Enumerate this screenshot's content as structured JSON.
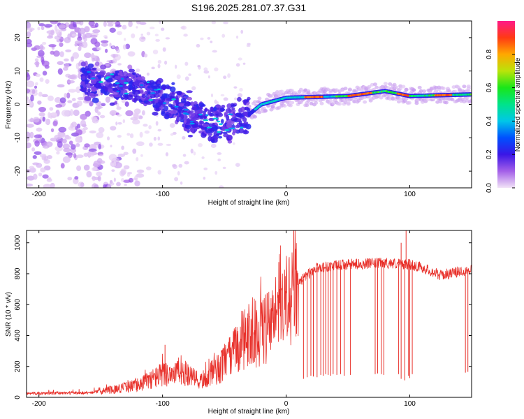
{
  "title": "S196.2025.281.07.37.G31",
  "chart_data": [
    {
      "type": "heatmap",
      "xlabel": "Height of straight line (km)",
      "ylabel": "Frequency (Hz)",
      "xlim": [
        -210,
        150
      ],
      "ylim": [
        -25,
        25
      ],
      "xticks": [
        -200,
        -100,
        0,
        100
      ],
      "yticks": [
        -20,
        -10,
        0,
        10,
        20
      ],
      "colorbar": {
        "label": "Normalized spectral amplitude",
        "range": [
          0,
          1
        ],
        "ticks": [
          0.0,
          0.2,
          0.4,
          0.6,
          0.8
        ],
        "tick_labels": [
          "0.0",
          "0.2",
          "0.4",
          "0.6",
          "0.8"
        ]
      },
      "ridge": {
        "description_points": [
          {
            "x": -160,
            "y": 7
          },
          {
            "x": -140,
            "y": 6
          },
          {
            "x": -120,
            "y": 5
          },
          {
            "x": -100,
            "y": 2
          },
          {
            "x": -80,
            "y": -3
          },
          {
            "x": -60,
            "y": -6
          },
          {
            "x": -40,
            "y": -5
          },
          {
            "x": -30,
            "y": -3
          },
          {
            "x": -20,
            "y": 0
          },
          {
            "x": 0,
            "y": 2
          },
          {
            "x": 50,
            "y": 2.5
          },
          {
            "x": 80,
            "y": 4
          },
          {
            "x": 100,
            "y": 2.5
          },
          {
            "x": 150,
            "y": 3
          }
        ]
      }
    },
    {
      "type": "line",
      "xlabel": "Height of straight line (km)",
      "ylabel": "SNR (10 * v/v)",
      "xlim": [
        -210,
        150
      ],
      "ylim": [
        0,
        1080
      ],
      "xticks": [
        -200,
        -100,
        0,
        100
      ],
      "yticks": [
        0,
        200,
        400,
        600,
        800,
        1000
      ],
      "color": "#e8302a",
      "envelope": [
        {
          "x": -210,
          "y": 25
        },
        {
          "x": -160,
          "y": 30
        },
        {
          "x": -140,
          "y": 50
        },
        {
          "x": -120,
          "y": 80
        },
        {
          "x": -100,
          "y": 150
        },
        {
          "x": -85,
          "y": 170
        },
        {
          "x": -70,
          "y": 100
        },
        {
          "x": -55,
          "y": 180
        },
        {
          "x": -45,
          "y": 260
        },
        {
          "x": -35,
          "y": 380
        },
        {
          "x": -25,
          "y": 420
        },
        {
          "x": -15,
          "y": 450
        },
        {
          "x": -5,
          "y": 520
        },
        {
          "x": 5,
          "y": 680
        },
        {
          "x": 15,
          "y": 780
        },
        {
          "x": 25,
          "y": 840
        },
        {
          "x": 50,
          "y": 860
        },
        {
          "x": 80,
          "y": 870
        },
        {
          "x": 100,
          "y": 860
        },
        {
          "x": 110,
          "y": 840
        },
        {
          "x": 125,
          "y": 790
        },
        {
          "x": 150,
          "y": 830
        }
      ],
      "dropouts_x": [
        14,
        17,
        20,
        22,
        25,
        28,
        30,
        32,
        34,
        36,
        38,
        41,
        44,
        47,
        52,
        72,
        74,
        77,
        79,
        91,
        93,
        96,
        99,
        100,
        102,
        145,
        147
      ],
      "dropouts_y": [
        120,
        130,
        140,
        135,
        130,
        145,
        140,
        150,
        145,
        140,
        150,
        145,
        150,
        140,
        145,
        150,
        155,
        150,
        145,
        150,
        120,
        110,
        140,
        125,
        150,
        160,
        165
      ],
      "spikes": [
        {
          "x": 93,
          "y": 1000
        },
        {
          "x": 97,
          "y": 1080
        },
        {
          "x": -98,
          "y": 340
        }
      ]
    }
  ]
}
